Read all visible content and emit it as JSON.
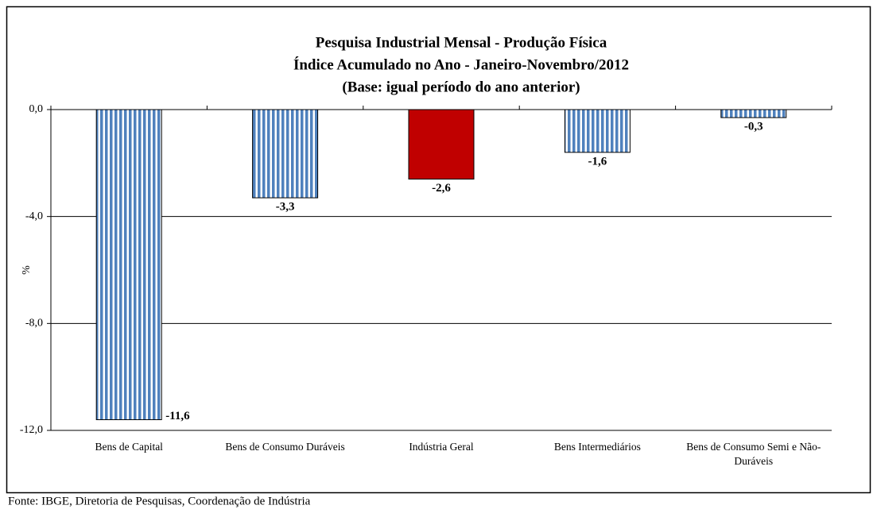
{
  "chart_data": {
    "type": "bar",
    "title": [
      "Pesquisa Industrial Mensal - Produção Física",
      "Índice Acumulado no Ano - Janeiro-Novembro/2012",
      "(Base: igual período do ano anterior)"
    ],
    "y_label": "%",
    "categories": [
      "Bens de Capital",
      "Bens de Consumo Duráveis",
      "Indústria Geral",
      "Bens Intermediários",
      "Bens de Consumo Semi e Não-Duráveis"
    ],
    "values": [
      -11.6,
      -3.3,
      -2.6,
      -1.6,
      -0.3
    ],
    "value_labels": [
      "-11,6",
      "-3,3",
      "-2,6",
      "-1,6",
      "-0,3"
    ],
    "colors": [
      "#4f81bd",
      "#4f81bd",
      "#c00000",
      "#4f81bd",
      "#4f81bd"
    ],
    "striped": [
      true,
      true,
      false,
      true,
      true
    ],
    "ylim": [
      -12,
      0
    ],
    "yticks": [
      {
        "value": 0,
        "label": "0,0"
      },
      {
        "value": -4,
        "label": "-4,0"
      },
      {
        "value": -8,
        "label": "-8,0"
      },
      {
        "value": -12,
        "label": "-12,0"
      }
    ],
    "grid": true,
    "source": "Fonte: IBGE, Diretoria de Pesquisas, Coordenação de Indústria"
  }
}
